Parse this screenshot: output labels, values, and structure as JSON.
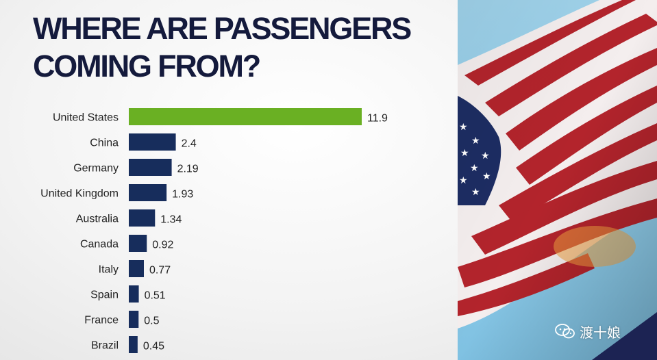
{
  "title_lines": [
    "WHERE ARE PASSENGERS",
    "COMING FROM?"
  ],
  "watermark": {
    "text": "渡十娘",
    "icon": "wechat-icon"
  },
  "colors": {
    "highlight_bar": "#6ab023",
    "bar": "#172d5c",
    "label_text": "#222222",
    "title_text": "#141a3c"
  },
  "chart_data": {
    "type": "bar",
    "orientation": "horizontal",
    "title": "WHERE ARE PASSENGERS COMING FROM?",
    "categories": [
      "United States",
      "China",
      "Germany",
      "United Kingdom",
      "Australia",
      "Canada",
      "Italy",
      "Spain",
      "France",
      "Brazil"
    ],
    "values": [
      11.9,
      2.4,
      2.19,
      1.93,
      1.34,
      0.92,
      0.77,
      0.51,
      0.5,
      0.45
    ],
    "value_labels": [
      "11.9",
      "2.4",
      "2.19",
      "1.93",
      "1.34",
      "0.92",
      "0.77",
      "0.51",
      "0.5",
      "0.45"
    ],
    "highlight_index": 0,
    "xlim": [
      0,
      11.9
    ],
    "xlabel": "",
    "ylabel": "",
    "grid": false,
    "legend": "none"
  }
}
